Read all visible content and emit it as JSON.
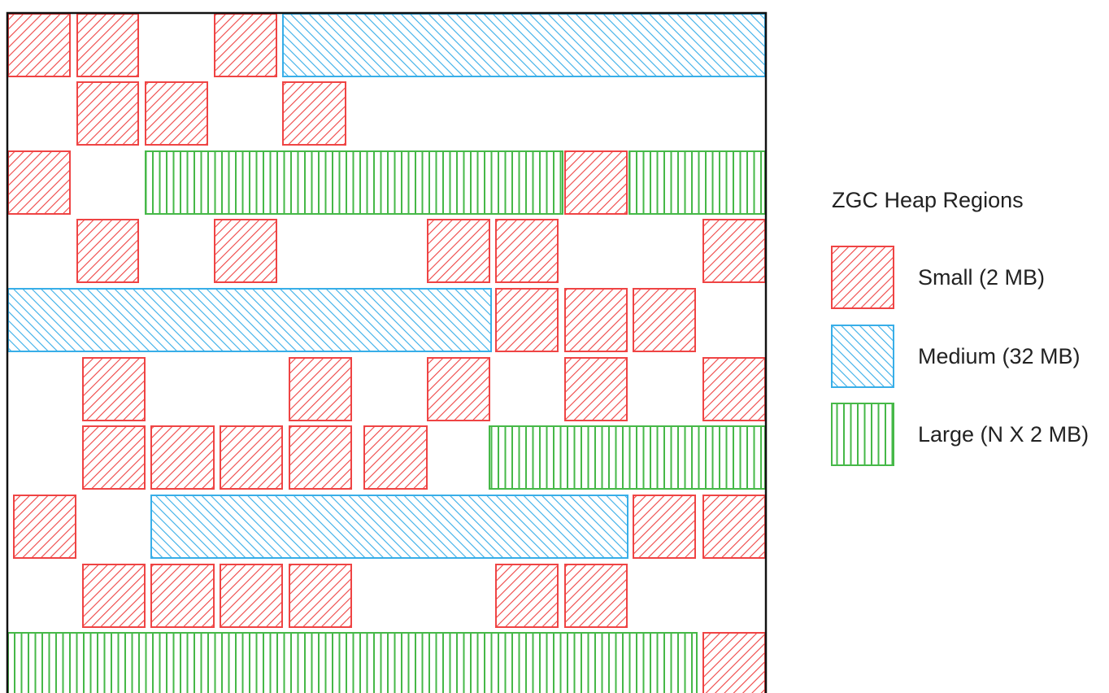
{
  "legend": {
    "title": "ZGC Heap Regions",
    "items": [
      {
        "key": "small",
        "label": "Small (2 MB)",
        "color": "#ef4444"
      },
      {
        "key": "medium",
        "label": "Medium (32 MB)",
        "color": "#38aee8"
      },
      {
        "key": "large",
        "label": "Large (N X 2 MB)",
        "color": "#46b848"
      }
    ]
  },
  "frame_color": "#111111",
  "heap": {
    "rows": [
      {
        "regions": [
          {
            "type": "small",
            "count": 1
          },
          {
            "type": "small",
            "count": 1
          },
          {
            "type": "small",
            "count": 1
          },
          {
            "type": "medium"
          }
        ]
      },
      {
        "regions": [
          {
            "type": "small",
            "count": 1
          },
          {
            "type": "small",
            "count": 1
          },
          {
            "type": "small",
            "count": 1
          }
        ]
      },
      {
        "regions": [
          {
            "type": "small",
            "count": 1
          },
          {
            "type": "large"
          },
          {
            "type": "small",
            "count": 1
          },
          {
            "type": "large"
          }
        ]
      },
      {
        "regions": [
          {
            "type": "small",
            "count": 1
          },
          {
            "type": "small",
            "count": 1
          },
          {
            "type": "small",
            "count": 1
          },
          {
            "type": "small",
            "count": 1
          },
          {
            "type": "small",
            "count": 1
          }
        ]
      },
      {
        "regions": [
          {
            "type": "medium"
          },
          {
            "type": "small",
            "count": 1
          },
          {
            "type": "small",
            "count": 1
          },
          {
            "type": "small",
            "count": 1
          }
        ]
      },
      {
        "regions": [
          {
            "type": "small",
            "count": 1
          },
          {
            "type": "small",
            "count": 1
          },
          {
            "type": "small",
            "count": 1
          },
          {
            "type": "small",
            "count": 1
          },
          {
            "type": "small",
            "count": 1
          }
        ]
      },
      {
        "regions": [
          {
            "type": "small",
            "count": 1
          },
          {
            "type": "small",
            "count": 1
          },
          {
            "type": "small",
            "count": 1
          },
          {
            "type": "small",
            "count": 1
          },
          {
            "type": "small",
            "count": 1
          },
          {
            "type": "large"
          }
        ]
      },
      {
        "regions": [
          {
            "type": "small",
            "count": 1
          },
          {
            "type": "medium"
          },
          {
            "type": "small",
            "count": 1
          },
          {
            "type": "small",
            "count": 1
          }
        ]
      },
      {
        "regions": [
          {
            "type": "small",
            "count": 1
          },
          {
            "type": "small",
            "count": 1
          },
          {
            "type": "small",
            "count": 1
          },
          {
            "type": "small",
            "count": 1
          },
          {
            "type": "small",
            "count": 1
          },
          {
            "type": "small",
            "count": 1
          }
        ]
      },
      {
        "regions": [
          {
            "type": "large"
          },
          {
            "type": "small",
            "count": 1
          }
        ]
      }
    ]
  }
}
